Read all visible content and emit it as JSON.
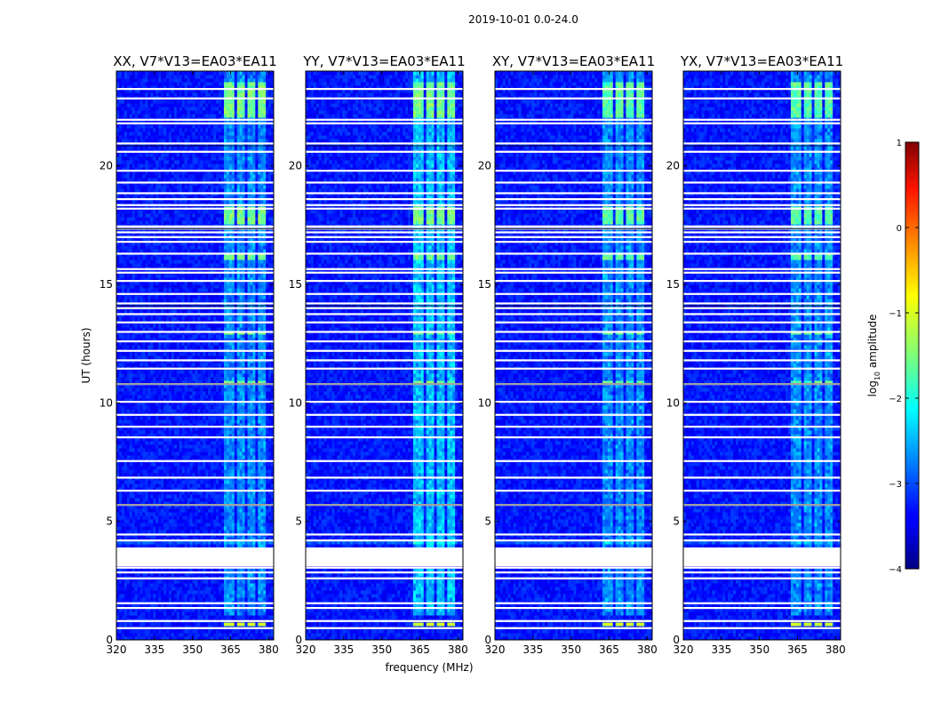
{
  "figure": {
    "suptitle": "2019-10-01 0.0-24.0",
    "xlabel": "frequency (MHz)",
    "ylabel": "UT (hours)"
  },
  "colorbar": {
    "label": "log10 amplitude",
    "label_main": "log",
    "label_sub": "10",
    "label_tail": " amplitude",
    "ticks": [
      1,
      0,
      -1,
      -2,
      -3,
      -4
    ],
    "tick_labels": [
      "1",
      "0",
      "−1",
      "−2",
      "−3",
      "−4"
    ],
    "range": [
      -4,
      1
    ],
    "colormap": "jet"
  },
  "chart_data": [
    {
      "type": "heatmap",
      "title": "XX, V7*V13=EA03*EA11",
      "xlabel": "",
      "ylabel": "UT (hours)",
      "xlim": [
        320,
        382
      ],
      "ylim": [
        0,
        24
      ],
      "xticks": [
        320,
        335,
        350,
        365,
        380
      ],
      "yticks": [
        0,
        5,
        10,
        15,
        20
      ],
      "ytick_labels": [
        "0",
        "5",
        "10",
        "15",
        "20"
      ],
      "z": "log10 amplitude, mostly -3.5 to -3; RFI bands 362-380 MHz up to -1.5"
    },
    {
      "type": "heatmap",
      "title": "YY, V7*V13=EA03*EA11",
      "xlabel": "frequency (MHz)",
      "ylabel": "",
      "xlim": [
        320,
        382
      ],
      "ylim": [
        0,
        24
      ],
      "xticks": [
        320,
        335,
        350,
        365,
        380
      ],
      "yticks": [
        0,
        5,
        10,
        15,
        20
      ],
      "ytick_labels": [
        "0",
        "5",
        "10",
        "15",
        "20"
      ],
      "z": "log10 amplitude, mostly -3.5 to -3; RFI bands 362-380 MHz up to -1.5"
    },
    {
      "type": "heatmap",
      "title": "XY, V7*V13=EA03*EA11",
      "xlabel": "",
      "ylabel": "",
      "xlim": [
        320,
        382
      ],
      "ylim": [
        0,
        24
      ],
      "xticks": [
        320,
        335,
        350,
        365,
        380
      ],
      "yticks": [
        0,
        5,
        10,
        15,
        20
      ],
      "ytick_labels": [
        "0",
        "5",
        "10",
        "15",
        "20"
      ],
      "z": "log10 amplitude, mostly -3.5 to -3; RFI bands 362-380 MHz up to -1.5"
    },
    {
      "type": "heatmap",
      "title": "YX, V7*V13=EA03*EA11",
      "xlabel": "",
      "ylabel": "",
      "xlim": [
        320,
        382
      ],
      "ylim": [
        0,
        24
      ],
      "xticks": [
        320,
        335,
        350,
        365,
        380
      ],
      "yticks": [
        0,
        5,
        10,
        15,
        20
      ],
      "ytick_labels": [
        "0",
        "5",
        "10",
        "15",
        "20"
      ],
      "z": "log10 amplitude, mostly -3.5 to -3; RFI bands 362-380 MHz up to -1.5"
    }
  ],
  "flagged_ut_hours": [
    0.5,
    0.8,
    1.35,
    1.55,
    2.6,
    2.85,
    3.05,
    3.2,
    3.3,
    3.4,
    3.5,
    3.6,
    3.7,
    3.8,
    4.2,
    4.45,
    5.7,
    6.3,
    6.85,
    7.55,
    8.55,
    9.0,
    9.5,
    10.05,
    10.8,
    11.45,
    11.8,
    12.2,
    12.6,
    13.0,
    13.4,
    13.75,
    14.0,
    14.2,
    14.6,
    15.15,
    15.5,
    15.65,
    16.3,
    16.8,
    17.0,
    17.2,
    17.35,
    17.45,
    18.2,
    18.35,
    18.6,
    18.85,
    19.3,
    19.8,
    20.6,
    20.95,
    21.8,
    21.95,
    22.85,
    23.25
  ]
}
